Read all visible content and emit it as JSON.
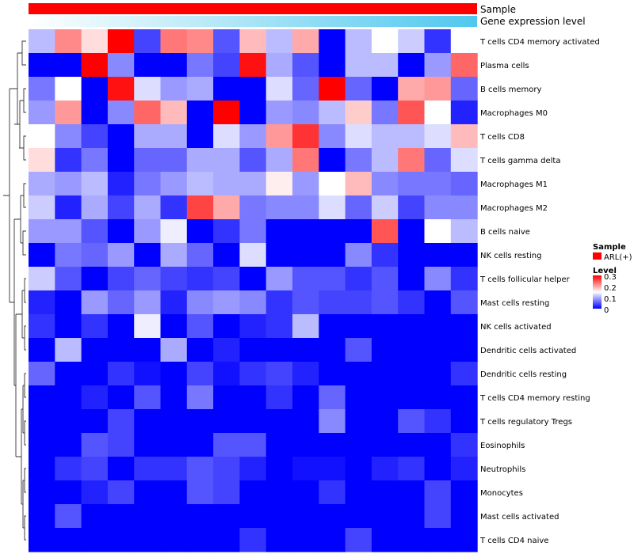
{
  "chart_data": {
    "type": "heatmap",
    "title": "",
    "annotation_labels": [
      "Sample",
      "Gene expression level"
    ],
    "sample_annotation": {
      "label": "Sample",
      "value": "ARL(+)",
      "color": "#ff0000"
    },
    "expression_gradient": {
      "label": "Gene expression level",
      "from": "#ffffff",
      "to": "#4fc8ee"
    },
    "columns": 17,
    "rows": [
      "T cells CD4 memory activated",
      "Plasma cells",
      "B cells memory",
      "Macrophages M0",
      "T cells CD8",
      "T cells gamma delta",
      "Macrophages M1",
      "Macrophages M2",
      "B cells naive",
      "NK cells resting",
      "T cells follicular helper",
      "Mast cells resting",
      "NK cells activated",
      "Dendritic cells activated",
      "Dendritic cells resting",
      "T cells CD4 memory resting",
      "T cells regulatory  Tregs",
      "Eosinophils",
      "Neutrophils",
      "Monocytes",
      "Mast cells activated",
      "T cells CD4 naive"
    ],
    "values": [
      [
        0.11,
        0.22,
        0.17,
        0.3,
        0.04,
        0.23,
        0.22,
        0.05,
        0.19,
        0.11,
        0.2,
        0.0,
        0.11,
        0.15,
        0.12,
        0.03,
        0.15
      ],
      [
        0.0,
        0.0,
        0.3,
        0.08,
        0.0,
        0.0,
        0.07,
        0.04,
        0.29,
        0.1,
        0.05,
        0.0,
        0.11,
        0.11,
        0.0,
        0.09,
        0.24
      ],
      [
        0.07,
        0.15,
        0.0,
        0.29,
        0.13,
        0.09,
        0.1,
        0.0,
        0.0,
        0.13,
        0.06,
        0.3,
        0.06,
        0.0,
        0.2,
        0.21,
        0.06
      ],
      [
        0.09,
        0.21,
        0.0,
        0.08,
        0.24,
        0.19,
        0.0,
        0.3,
        0.0,
        0.09,
        0.08,
        0.11,
        0.18,
        0.07,
        0.25,
        0.15,
        0.02
      ],
      [
        0.15,
        0.08,
        0.04,
        0.0,
        0.1,
        0.1,
        0.0,
        0.13,
        0.09,
        0.21,
        0.27,
        0.08,
        0.13,
        0.11,
        0.11,
        0.13,
        0.19
      ],
      [
        0.17,
        0.03,
        0.07,
        0.0,
        0.06,
        0.06,
        0.1,
        0.1,
        0.05,
        0.1,
        0.23,
        0.0,
        0.07,
        0.11,
        0.23,
        0.06,
        0.13
      ],
      [
        0.1,
        0.09,
        0.11,
        0.02,
        0.07,
        0.09,
        0.11,
        0.1,
        0.1,
        0.16,
        0.09,
        0.15,
        0.19,
        0.08,
        0.07,
        0.07,
        0.06
      ],
      [
        0.12,
        0.02,
        0.1,
        0.04,
        0.1,
        0.03,
        0.26,
        0.2,
        0.07,
        0.08,
        0.08,
        0.13,
        0.06,
        0.12,
        0.04,
        0.08,
        0.08
      ],
      [
        0.09,
        0.09,
        0.05,
        0.0,
        0.09,
        0.14,
        0.0,
        0.03,
        0.07,
        0.0,
        0.0,
        0.0,
        0.0,
        0.25,
        0.0,
        0.15,
        0.11
      ],
      [
        0.0,
        0.07,
        0.06,
        0.09,
        0.0,
        0.1,
        0.06,
        0.0,
        0.13,
        0.0,
        0.0,
        0.0,
        0.08,
        0.03,
        0.0,
        0.0,
        0.0
      ],
      [
        0.12,
        0.05,
        0.0,
        0.04,
        0.06,
        0.04,
        0.03,
        0.04,
        0.0,
        0.09,
        0.05,
        0.05,
        0.03,
        0.05,
        0.0,
        0.08,
        0.03
      ],
      [
        0.02,
        0.0,
        0.09,
        0.06,
        0.09,
        0.02,
        0.08,
        0.09,
        0.08,
        0.03,
        0.05,
        0.04,
        0.04,
        0.05,
        0.03,
        0.0,
        0.05
      ],
      [
        0.03,
        0.0,
        0.03,
        0.0,
        0.14,
        0.0,
        0.05,
        0.0,
        0.02,
        0.03,
        0.11,
        0.0,
        0.0,
        0.0,
        0.0,
        0.0,
        0.0
      ],
      [
        0.0,
        0.11,
        0.0,
        0.0,
        0.0,
        0.1,
        0.0,
        0.02,
        0.0,
        0.0,
        0.0,
        0.0,
        0.05,
        0.0,
        0.0,
        0.0,
        0.0
      ],
      [
        0.06,
        0.0,
        0.0,
        0.03,
        0.01,
        0.0,
        0.04,
        0.01,
        0.03,
        0.04,
        0.02,
        0.0,
        0.0,
        0.0,
        0.0,
        0.0,
        0.03
      ],
      [
        0.0,
        0.0,
        0.02,
        0.0,
        0.05,
        0.0,
        0.07,
        0.0,
        0.0,
        0.03,
        0.0,
        0.06,
        0.0,
        0.0,
        0.0,
        0.0,
        0.0
      ],
      [
        0.0,
        0.0,
        0.0,
        0.04,
        0.0,
        0.0,
        0.0,
        0.0,
        0.0,
        0.0,
        0.0,
        0.08,
        0.0,
        0.0,
        0.05,
        0.03,
        0.0
      ],
      [
        0.0,
        0.0,
        0.05,
        0.04,
        0.0,
        0.0,
        0.0,
        0.05,
        0.05,
        0.0,
        0.0,
        0.0,
        0.0,
        0.0,
        0.0,
        0.0,
        0.03
      ],
      [
        0.0,
        0.03,
        0.04,
        0.0,
        0.03,
        0.03,
        0.05,
        0.04,
        0.02,
        0.0,
        0.01,
        0.01,
        0.0,
        0.02,
        0.03,
        0.0,
        0.02
      ],
      [
        0.0,
        0.0,
        0.02,
        0.04,
        0.0,
        0.0,
        0.05,
        0.04,
        0.0,
        0.0,
        0.0,
        0.03,
        0.0,
        0.0,
        0.0,
        0.04,
        0.0
      ],
      [
        0.0,
        0.05,
        0.0,
        0.0,
        0.0,
        0.0,
        0.0,
        0.0,
        0.0,
        0.0,
        0.0,
        0.0,
        0.0,
        0.0,
        0.0,
        0.04,
        0.0
      ],
      [
        0.0,
        0.0,
        0.0,
        0.0,
        0.0,
        0.0,
        0.0,
        0.0,
        0.03,
        0.0,
        0.0,
        0.0,
        0.04,
        0.0,
        0.0,
        0.0,
        0.0
      ]
    ],
    "color_scale": {
      "min": 0,
      "max": 0.3,
      "low": "#0000ff",
      "mid": "#ffffff",
      "mid_value": 0.15,
      "high": "#ff0000"
    },
    "legend": {
      "position": "right",
      "sample_title": "Sample",
      "sample_entry": "ARL(+)",
      "level_title": "Level",
      "level_ticks": [
        "0.3",
        "0.2",
        "0.1",
        "0"
      ],
      "level_tick_values": [
        0.3,
        0.2,
        0.1,
        0
      ]
    },
    "row_dendrogram": true
  }
}
